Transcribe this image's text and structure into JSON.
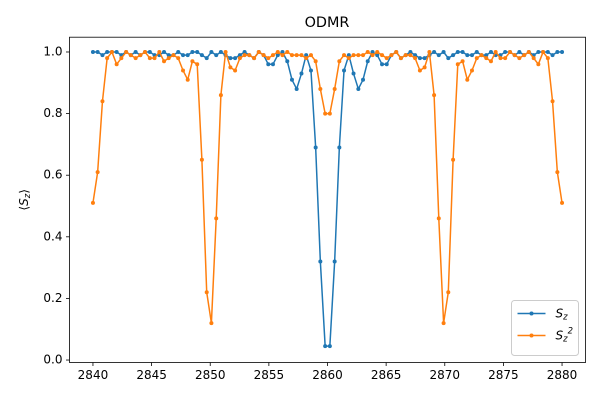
{
  "chart_data": {
    "type": "line",
    "title": "ODMR",
    "ylabel": "⟨S_z⟩",
    "x": [
      2840.0,
      2840.4,
      2840.81,
      2841.21,
      2841.62,
      2842.02,
      2842.42,
      2842.83,
      2843.23,
      2843.64,
      2844.04,
      2844.44,
      2844.85,
      2845.25,
      2845.66,
      2846.06,
      2846.46,
      2846.87,
      2847.27,
      2847.68,
      2848.08,
      2848.48,
      2848.89,
      2849.29,
      2849.7,
      2850.1,
      2850.51,
      2850.91,
      2851.31,
      2851.72,
      2852.12,
      2852.53,
      2852.93,
      2853.33,
      2853.74,
      2854.14,
      2854.55,
      2854.95,
      2855.35,
      2855.76,
      2856.16,
      2856.57,
      2856.97,
      2857.37,
      2857.78,
      2858.18,
      2858.59,
      2858.99,
      2859.39,
      2859.8,
      2860.2,
      2860.61,
      2861.01,
      2861.41,
      2861.82,
      2862.22,
      2862.63,
      2863.03,
      2863.43,
      2863.84,
      2864.24,
      2864.65,
      2865.05,
      2865.45,
      2865.86,
      2866.26,
      2866.67,
      2867.07,
      2867.47,
      2867.88,
      2868.28,
      2868.69,
      2869.09,
      2869.49,
      2869.9,
      2870.3,
      2870.71,
      2871.11,
      2871.52,
      2871.92,
      2872.32,
      2872.73,
      2873.13,
      2873.54,
      2873.94,
      2874.34,
      2874.75,
      2875.15,
      2875.56,
      2875.96,
      2876.36,
      2876.77,
      2877.17,
      2877.58,
      2877.98,
      2878.38,
      2878.79,
      2879.19,
      2879.6,
      2880.0
    ],
    "series": [
      {
        "name": "S_z",
        "color": "#1f77b4",
        "values": [
          1.0,
          1.0,
          0.99,
          1.0,
          1.0,
          1.0,
          0.99,
          1.0,
          0.99,
          1.0,
          0.99,
          1.0,
          1.0,
          0.99,
          0.99,
          1.0,
          0.99,
          0.99,
          1.0,
          0.99,
          0.99,
          1.0,
          1.0,
          0.99,
          0.98,
          1.0,
          0.99,
          1.0,
          0.99,
          0.98,
          0.98,
          0.99,
          1.0,
          0.99,
          0.98,
          1.0,
          0.99,
          0.96,
          0.96,
          0.99,
          1.0,
          0.97,
          0.91,
          0.88,
          0.93,
          0.99,
          0.94,
          0.69,
          0.32,
          0.045,
          0.045,
          0.32,
          0.69,
          0.94,
          0.99,
          0.93,
          0.88,
          0.91,
          0.97,
          1.0,
          0.99,
          0.96,
          0.96,
          0.99,
          1.0,
          0.98,
          0.99,
          1.0,
          0.99,
          0.98,
          0.98,
          0.99,
          1.0,
          0.99,
          1.0,
          0.98,
          0.99,
          1.0,
          1.0,
          0.99,
          0.99,
          1.0,
          0.99,
          0.99,
          1.0,
          0.99,
          0.99,
          1.0,
          1.0,
          0.99,
          1.0,
          0.99,
          1.0,
          0.99,
          1.0,
          1.0,
          1.0,
          0.99,
          1.0,
          1.0
        ]
      },
      {
        "name": "S_z^2",
        "color": "#ff7f0e",
        "values": [
          0.51,
          0.61,
          0.84,
          0.98,
          1.0,
          0.96,
          0.98,
          1.0,
          0.99,
          0.98,
          0.99,
          1.0,
          0.98,
          0.98,
          1.0,
          0.97,
          0.98,
          0.99,
          0.98,
          0.94,
          0.91,
          0.97,
          0.96,
          0.65,
          0.22,
          0.12,
          0.46,
          0.86,
          1.0,
          0.95,
          0.94,
          0.98,
          0.99,
          0.99,
          0.98,
          1.0,
          0.99,
          0.98,
          0.99,
          1.0,
          0.99,
          1.0,
          0.99,
          0.99,
          0.99,
          0.98,
          0.99,
          0.97,
          0.88,
          0.8,
          0.8,
          0.88,
          0.97,
          0.99,
          0.98,
          0.99,
          0.99,
          0.99,
          1.0,
          0.99,
          1.0,
          0.99,
          0.98,
          0.99,
          1.0,
          0.98,
          0.99,
          0.99,
          0.98,
          0.94,
          0.95,
          1.0,
          0.86,
          0.46,
          0.12,
          0.22,
          0.65,
          0.96,
          0.97,
          0.91,
          0.94,
          0.98,
          0.99,
          0.98,
          0.97,
          1.0,
          0.98,
          0.98,
          1.0,
          0.99,
          0.98,
          0.99,
          1.0,
          0.98,
          0.96,
          1.0,
          0.98,
          0.84,
          0.61,
          0.51
        ]
      }
    ],
    "xlim": [
      2838,
      2882
    ],
    "xticks": [
      2840,
      2845,
      2850,
      2855,
      2860,
      2865,
      2870,
      2875,
      2880
    ],
    "ylim": [
      -0.008,
      1.048
    ],
    "yticks": [
      {
        "value": 0,
        "label": "0.0"
      },
      0.2,
      0.4,
      0.6,
      0.8,
      {
        "value": 1,
        "label": "1.0"
      }
    ],
    "legend": "lower right"
  }
}
